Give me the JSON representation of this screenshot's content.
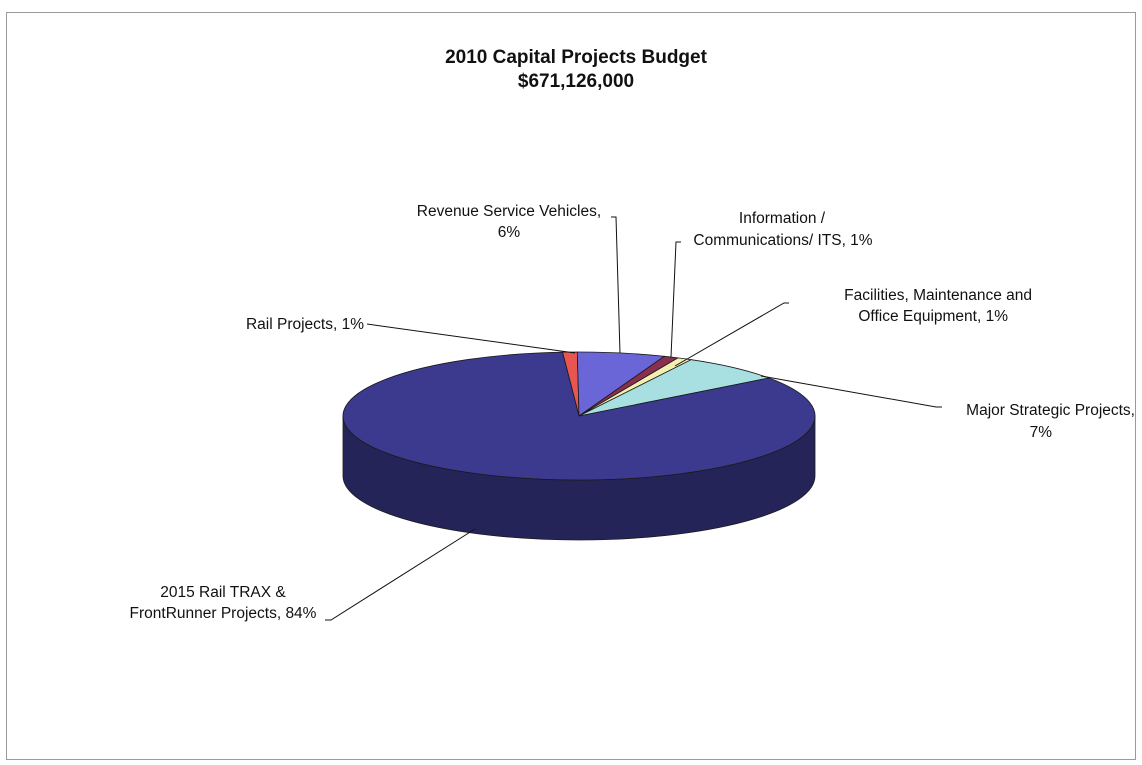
{
  "chart_data": {
    "type": "pie",
    "title": "2010 Capital Projects Budget",
    "subtitle": "$671,126,000",
    "slices": [
      {
        "name": "Rail Projects",
        "value": 1,
        "label": "Rail Projects, 1%",
        "color": "#e8564f"
      },
      {
        "name": "Revenue Service Vehicles",
        "value": 6,
        "label_lines": [
          "Revenue Service Vehicles,",
          "6%"
        ],
        "color": "#6b66d8"
      },
      {
        "name": "Information / Communications/ ITS",
        "value": 1,
        "label_lines": [
          "Information /",
          "Communications/ ITS, 1%"
        ],
        "color": "#8a2f4e"
      },
      {
        "name": "Facilities, Maintenance and Office Equipment",
        "value": 1,
        "label_lines": [
          "Facilities, Maintenance and",
          "Office Equipment, 1%"
        ],
        "color": "#f2efb0"
      },
      {
        "name": "Major Strategic Projects",
        "value": 7,
        "label_lines": [
          "Major Strategic Projects,",
          "7%"
        ],
        "color": "#a8dfe0"
      },
      {
        "name": "2015 Rail TRAX & FrontRunner Projects",
        "value": 84,
        "label_lines": [
          "2015 Rail TRAX &",
          "FrontRunner Projects, 84%"
        ],
        "color": "#3b3a8f"
      }
    ]
  }
}
